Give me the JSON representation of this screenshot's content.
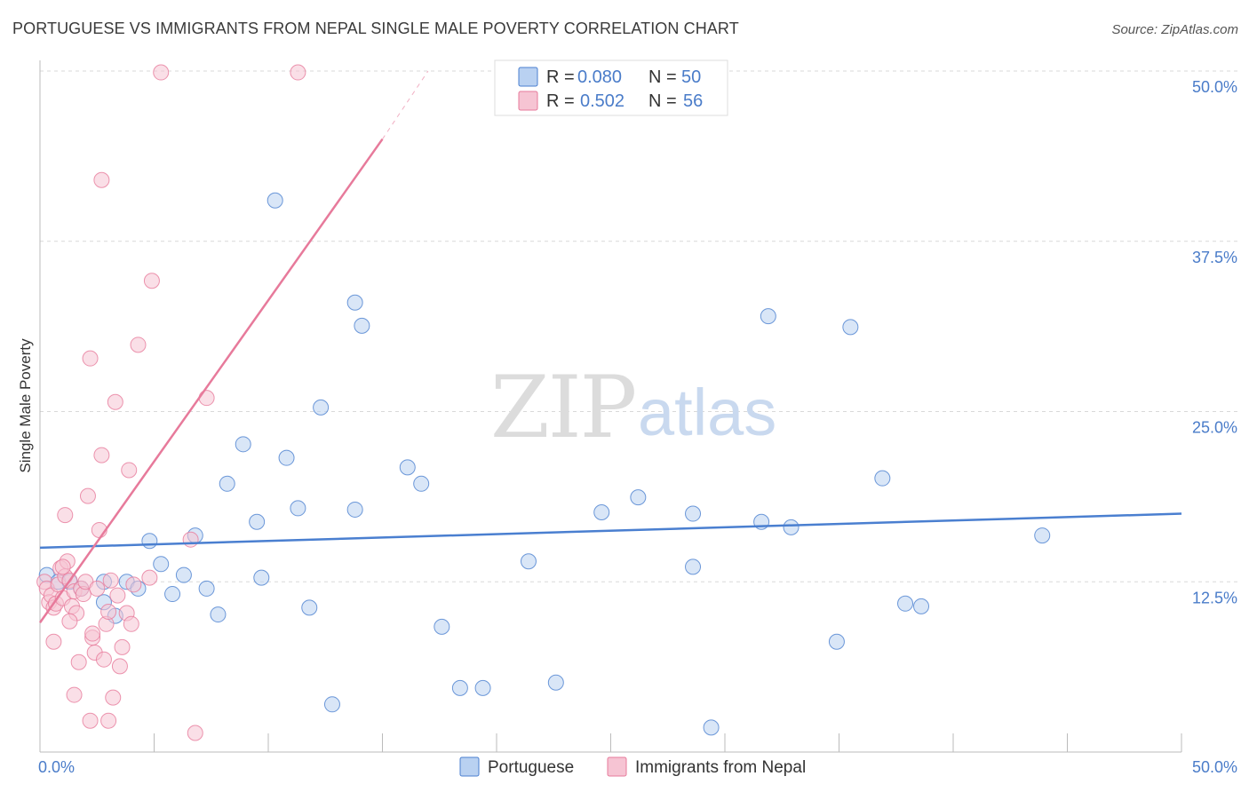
{
  "title": "PORTUGUESE VS IMMIGRANTS FROM NEPAL SINGLE MALE POVERTY CORRELATION CHART",
  "source": "Source: ZipAtlas.com",
  "watermark": {
    "zip": "ZIP",
    "atlas": "atlas"
  },
  "colors": {
    "blue": "#4a7fd0",
    "blue_fill": "#b9d1f1",
    "pink": "#e77a9b",
    "pink_fill": "#f6c4d3",
    "tick_text": "#4a7cc9",
    "grid": "#d9d9d9"
  },
  "legend": {
    "rows": [
      {
        "r_label": "R = ",
        "r_value": "0.080",
        "n_label": "N = ",
        "n_value": "50"
      },
      {
        "r_label": "R = ",
        "r_value": "0.502",
        "n_label": "N = ",
        "n_value": "56"
      }
    ]
  },
  "bottom_legend": [
    "Portuguese",
    "Immigrants from Nepal"
  ],
  "chart_data": {
    "type": "scatter",
    "title": "PORTUGUESE VS IMMIGRANTS FROM NEPAL SINGLE MALE POVERTY CORRELATION CHART",
    "xlabel": "",
    "ylabel": "Single Male Poverty",
    "xlim": [
      0,
      50
    ],
    "ylim": [
      0,
      50
    ],
    "x_tick_labels": [
      "0.0%",
      "50.0%"
    ],
    "y_ticks": [
      12.5,
      25.0,
      37.5,
      50.0
    ],
    "y_tick_labels": [
      "12.5%",
      "25.0%",
      "37.5%",
      "50.0%"
    ],
    "grid": "horizontal dashed",
    "legend_position": "top-center",
    "series": [
      {
        "name": "Portuguese",
        "color": "#4a7fd0",
        "r": 0.08,
        "n": 50,
        "trend": [
          [
            0,
            15.0
          ],
          [
            50,
            17.5
          ]
        ],
        "points": [
          [
            0.3,
            13.0
          ],
          [
            0.8,
            12.5
          ],
          [
            1.3,
            12.5
          ],
          [
            1.8,
            12.0
          ],
          [
            2.8,
            11.0
          ],
          [
            3.3,
            10.0
          ],
          [
            2.8,
            12.5
          ],
          [
            3.8,
            12.5
          ],
          [
            4.3,
            12.0
          ],
          [
            4.8,
            15.5
          ],
          [
            5.3,
            13.8
          ],
          [
            5.8,
            11.6
          ],
          [
            6.3,
            13.0
          ],
          [
            6.8,
            15.9
          ],
          [
            7.3,
            12.0
          ],
          [
            7.8,
            10.1
          ],
          [
            8.2,
            19.7
          ],
          [
            8.9,
            22.6
          ],
          [
            9.5,
            16.9
          ],
          [
            9.7,
            12.8
          ],
          [
            10.3,
            40.5
          ],
          [
            10.8,
            21.6
          ],
          [
            11.3,
            17.9
          ],
          [
            11.8,
            10.6
          ],
          [
            12.3,
            25.3
          ],
          [
            12.8,
            3.5
          ],
          [
            13.8,
            33.0
          ],
          [
            14.1,
            31.3
          ],
          [
            13.8,
            17.8
          ],
          [
            16.1,
            20.9
          ],
          [
            16.7,
            19.7
          ],
          [
            17.6,
            9.2
          ],
          [
            18.4,
            4.7
          ],
          [
            19.4,
            4.7
          ],
          [
            21.4,
            14.0
          ],
          [
            22.6,
            5.1
          ],
          [
            24.6,
            17.6
          ],
          [
            26.2,
            18.7
          ],
          [
            28.6,
            17.5
          ],
          [
            28.6,
            13.6
          ],
          [
            29.4,
            1.8
          ],
          [
            31.6,
            16.9
          ],
          [
            31.9,
            32.0
          ],
          [
            32.9,
            16.5
          ],
          [
            34.9,
            8.1
          ],
          [
            35.5,
            31.2
          ],
          [
            36.9,
            20.1
          ],
          [
            37.9,
            10.9
          ],
          [
            38.6,
            10.7
          ],
          [
            43.9,
            15.9
          ]
        ]
      },
      {
        "name": "Immigrants from Nepal",
        "color": "#e77a9b",
        "r": 0.502,
        "n": 56,
        "trend": [
          [
            0,
            9.5
          ],
          [
            15,
            45.0
          ]
        ],
        "trend_extension": [
          [
            15,
            45.0
          ],
          [
            17,
            50.0
          ]
        ],
        "points": [
          [
            0.2,
            12.5
          ],
          [
            0.3,
            12.0
          ],
          [
            0.4,
            11.0
          ],
          [
            0.5,
            11.5
          ],
          [
            0.6,
            10.6
          ],
          [
            0.7,
            10.9
          ],
          [
            0.8,
            12.3
          ],
          [
            0.9,
            13.5
          ],
          [
            1.0,
            11.3
          ],
          [
            1.1,
            12.9
          ],
          [
            1.2,
            14.0
          ],
          [
            1.3,
            12.6
          ],
          [
            1.4,
            10.7
          ],
          [
            1.5,
            11.8
          ],
          [
            1.6,
            10.2
          ],
          [
            1.7,
            6.6
          ],
          [
            1.8,
            12.0
          ],
          [
            1.9,
            11.6
          ],
          [
            2.0,
            12.5
          ],
          [
            2.1,
            18.8
          ],
          [
            2.2,
            28.9
          ],
          [
            2.3,
            8.4
          ],
          [
            2.4,
            7.3
          ],
          [
            2.5,
            12.0
          ],
          [
            2.6,
            16.3
          ],
          [
            2.7,
            21.8
          ],
          [
            2.8,
            6.8
          ],
          [
            2.9,
            9.4
          ],
          [
            3.0,
            10.3
          ],
          [
            3.1,
            12.6
          ],
          [
            3.2,
            4.0
          ],
          [
            3.3,
            25.7
          ],
          [
            3.4,
            11.5
          ],
          [
            3.5,
            6.3
          ],
          [
            3.6,
            7.7
          ],
          [
            3.8,
            10.2
          ],
          [
            4.0,
            9.4
          ],
          [
            4.1,
            12.3
          ],
          [
            3.9,
            20.7
          ],
          [
            4.3,
            29.9
          ],
          [
            4.8,
            12.8
          ],
          [
            4.9,
            34.6
          ],
          [
            5.3,
            49.9
          ],
          [
            6.6,
            15.6
          ],
          [
            6.8,
            1.4
          ],
          [
            7.3,
            26.0
          ],
          [
            11.3,
            49.9
          ],
          [
            1.0,
            13.6
          ],
          [
            1.5,
            4.2
          ],
          [
            2.2,
            2.3
          ],
          [
            2.3,
            8.7
          ],
          [
            2.7,
            42.0
          ],
          [
            3.0,
            2.3
          ],
          [
            1.3,
            9.6
          ],
          [
            0.6,
            8.1
          ],
          [
            1.1,
            17.4
          ]
        ]
      }
    ]
  }
}
